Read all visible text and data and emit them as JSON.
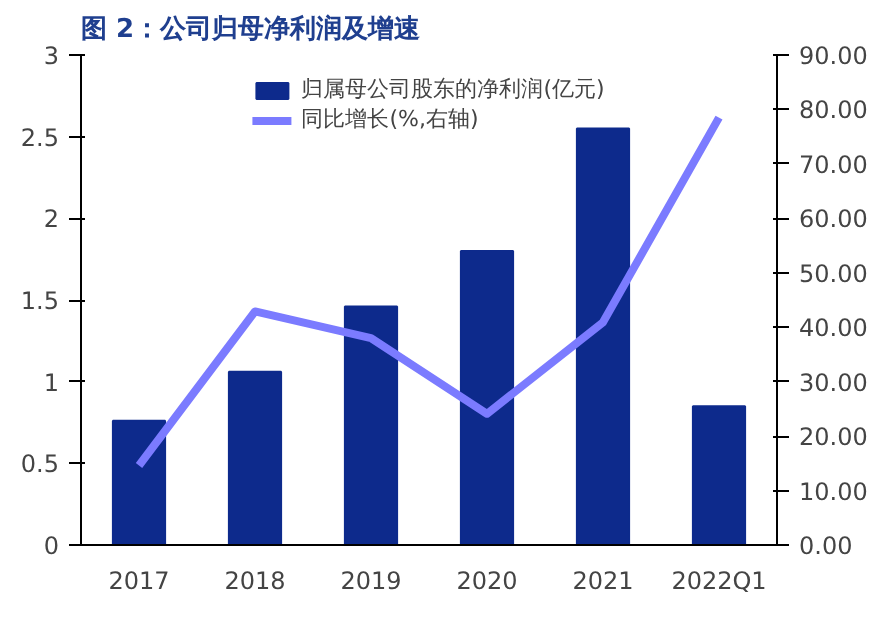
{
  "chart_data": {
    "type": "bar",
    "title": "图 2：公司归母净利润及增速",
    "categories": [
      "2017",
      "2018",
      "2019",
      "2020",
      "2021",
      "2022Q1"
    ],
    "series": [
      {
        "name": "归属母公司股东的净利润(亿元)",
        "color": "#0d2a8c",
        "values": [
          0.76,
          1.06,
          1.46,
          1.8,
          2.55,
          0.85
        ]
      },
      {
        "name": "同比增长(%,右轴)",
        "type": "line",
        "axis": "y2",
        "color": "#7b7bff",
        "values": [
          14.6,
          42.9,
          38.0,
          24.1,
          40.9,
          78.5
        ]
      }
    ],
    "ylim": [
      0,
      3
    ],
    "yticks": [
      0,
      0.5,
      1,
      1.5,
      2,
      2.5,
      3
    ],
    "y2lim": [
      0,
      90
    ],
    "y2ticks": [
      {
        "value": 0,
        "label": "0.00"
      },
      {
        "value": 10,
        "label": "10.00"
      },
      {
        "value": 20,
        "label": "20.00"
      },
      {
        "value": 30,
        "label": "30.00"
      },
      {
        "value": 40,
        "label": "40.00"
      },
      {
        "value": 50,
        "label": "50.00"
      },
      {
        "value": 60,
        "label": "60.00"
      },
      {
        "value": 70,
        "label": "70.00"
      },
      {
        "value": 80,
        "label": "80.00"
      },
      {
        "value": 90,
        "label": "90.00"
      }
    ],
    "legend": "top",
    "grid": false
  }
}
